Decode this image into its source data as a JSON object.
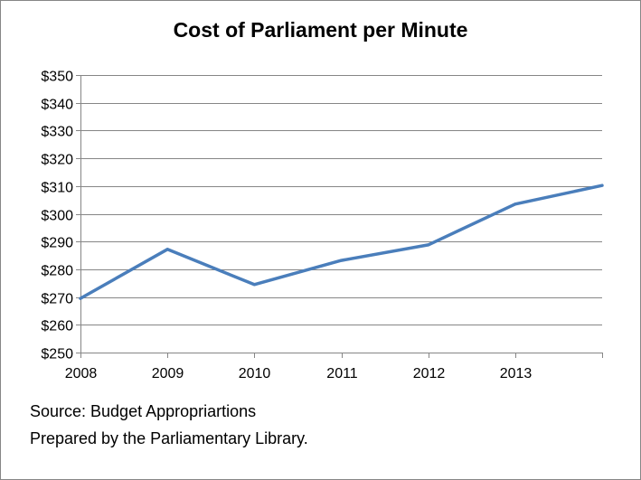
{
  "chart_data": {
    "type": "line",
    "title": "Cost of Parliament per Minute",
    "xlabel": "",
    "ylabel": "",
    "categories": [
      "2008",
      "2009",
      "2010",
      "2011",
      "2012",
      "2013",
      ""
    ],
    "series": [
      {
        "values": [
          269.5,
          287.2,
          274.5,
          283.2,
          288.8,
          303.5,
          310.2
        ],
        "color": "#4a7ebb"
      }
    ],
    "ylim": [
      250,
      350
    ],
    "ytick_step": 10,
    "ytick_prefix": "$",
    "grid": true
  },
  "footer": {
    "line1": "Source: Budget Appropriartions",
    "line2": "Prepared by the Parliamentary Library."
  }
}
